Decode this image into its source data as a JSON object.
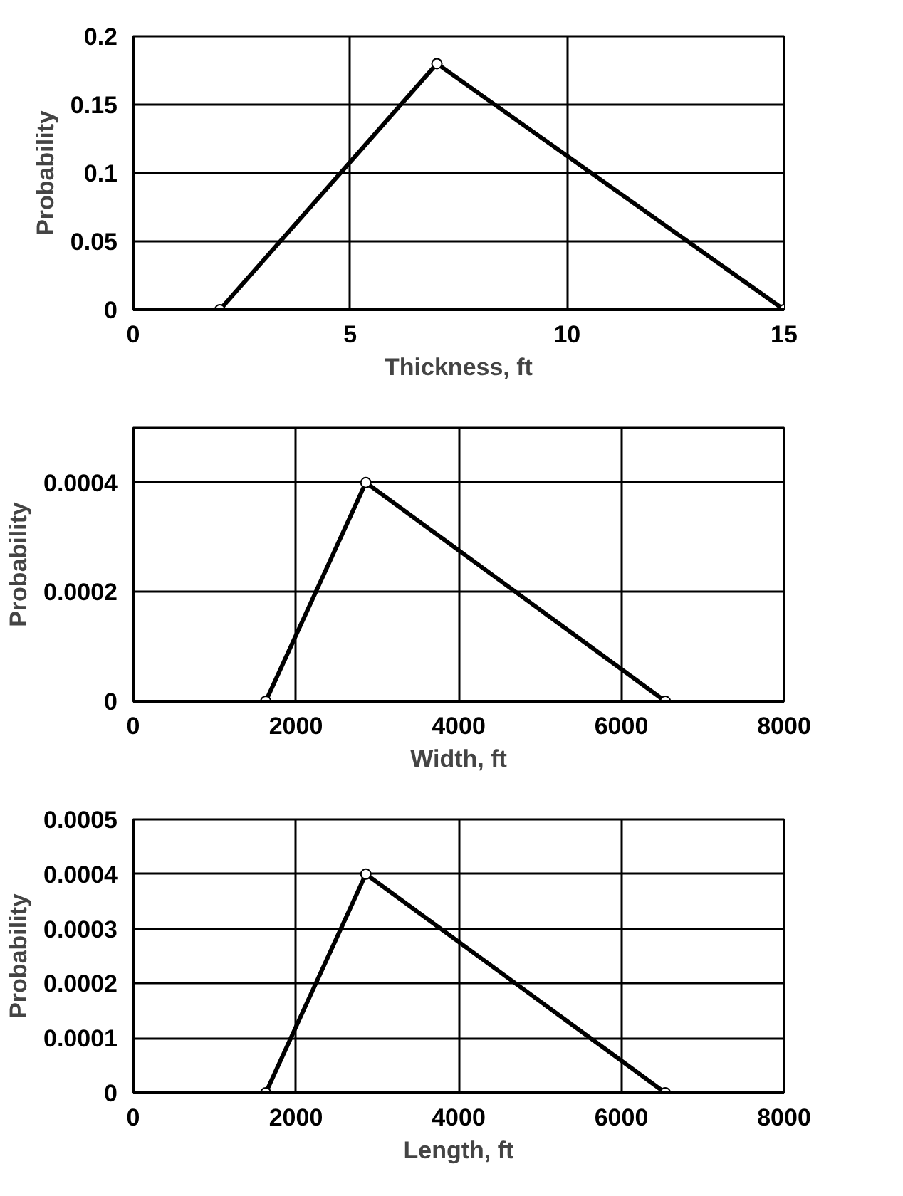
{
  "chart_data": [
    {
      "type": "line",
      "xlabel": "Thickness, ft",
      "ylabel": "Probability",
      "x": [
        2,
        7,
        15
      ],
      "series": [
        {
          "color": "#000000",
          "values": [
            0,
            0.18,
            0
          ]
        }
      ],
      "xlim": [
        0,
        15
      ],
      "xticks": [
        0,
        5,
        10,
        15
      ],
      "ylim": [
        0,
        0.2
      ],
      "yticks": [
        0,
        0.05,
        0.1,
        0.15,
        0.2
      ],
      "grid": true,
      "marker": "circle",
      "line_style": "solid"
    },
    {
      "type": "line",
      "xlabel": "Width, ft",
      "ylabel": "Probability",
      "x": [
        1630,
        2860,
        6540
      ],
      "series": [
        {
          "color": "#000000",
          "values": [
            0,
            0.0004,
            0
          ]
        }
      ],
      "xlim": [
        0,
        8000
      ],
      "xticks": [
        0,
        2000,
        4000,
        6000,
        8000
      ],
      "ylim": [
        0,
        0.0005
      ],
      "yticks": [
        0,
        0.0002,
        0.0004
      ],
      "grid": true,
      "marker": "circle",
      "line_style": "solid"
    },
    {
      "type": "line",
      "xlabel": "Length, ft",
      "ylabel": "Probability",
      "x": [
        1630,
        2860,
        6540
      ],
      "series": [
        {
          "color": "#000000",
          "values": [
            0,
            0.0004,
            0
          ]
        }
      ],
      "xlim": [
        0,
        8000
      ],
      "xticks": [
        0,
        2000,
        4000,
        6000,
        8000
      ],
      "ylim": [
        0,
        0.0005
      ],
      "yticks": [
        0,
        0.0001,
        0.0002,
        0.0003,
        0.0004,
        0.0005
      ],
      "grid": true,
      "marker": "circle",
      "line_style": "solid"
    }
  ]
}
